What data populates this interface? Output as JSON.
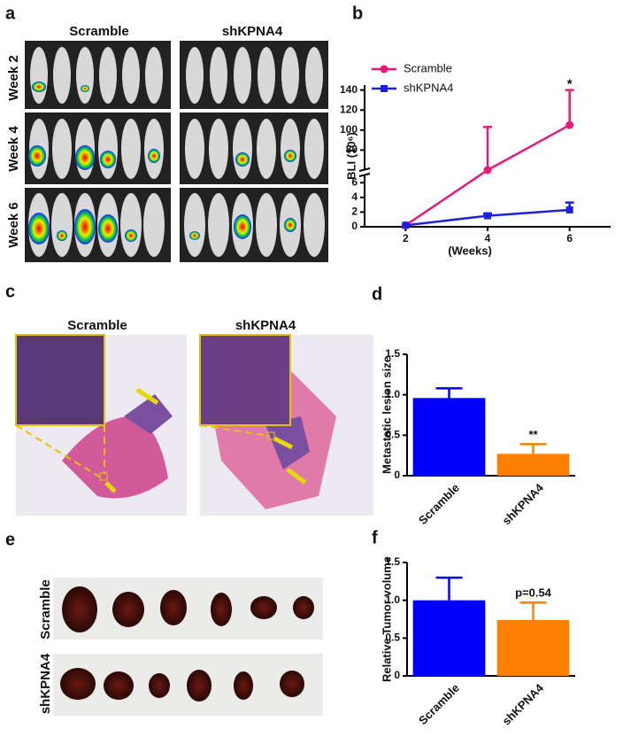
{
  "panels": {
    "labels": [
      "a",
      "b",
      "c",
      "d",
      "e",
      "f"
    ]
  },
  "panel_a": {
    "groups": [
      "Scramble",
      "shKPNA4"
    ],
    "rows": [
      "Week 2",
      "Week 4",
      "Week 6"
    ]
  },
  "panel_c": {
    "groups": [
      "Scramble",
      "shKPNA4"
    ]
  },
  "panel_e": {
    "rows": [
      "Scramble",
      "shKPNA4"
    ]
  },
  "chart_data": [
    {
      "type": "line",
      "ylabel": "BLI (10⁶)",
      "xlabel": "(Weeks)",
      "x": [
        2,
        4,
        6
      ],
      "xlim": [
        1,
        7
      ],
      "xticks": [
        2,
        4,
        6
      ],
      "y_segments": [
        {
          "ylim": [
            0,
            7
          ],
          "yticks": [
            0,
            2,
            4,
            6
          ]
        },
        {
          "ylim": [
            60,
            145
          ],
          "yticks": [
            80,
            100,
            120,
            140
          ]
        }
      ],
      "series": [
        {
          "name": "Scramble",
          "color": "#e8197a",
          "marker": "circle",
          "values": [
            0.2,
            60,
            105
          ],
          "errors": [
            null,
            43,
            35
          ]
        },
        {
          "name": "shKPNA4",
          "color": "#1f1fe0",
          "marker": "square",
          "values": [
            0.2,
            1.5,
            2.3
          ],
          "errors": [
            null,
            0.3,
            1
          ]
        }
      ],
      "annotation": "*",
      "legend": "upper left"
    },
    {
      "type": "bar",
      "ylabel": "Metastatic lesion size",
      "categories": [
        "Scramble",
        "shKPNA4"
      ],
      "values": [
        0.96,
        0.27
      ],
      "errors": [
        0.12,
        0.12
      ],
      "colors": [
        "#0000ff",
        "#ff8000"
      ],
      "ylim": [
        0,
        1.5
      ],
      "yticks": [
        0,
        0.5,
        {
          "value": 1,
          "label": "1.0"
        },
        1.5
      ],
      "annotation": "**"
    },
    {
      "type": "bar",
      "ylabel": "Relative Tumor volume",
      "categories": [
        "Scramble",
        "shKPNA4"
      ],
      "values": [
        1.0,
        0.74
      ],
      "errors": [
        0.3,
        0.23
      ],
      "colors": [
        "#0000ff",
        "#ff8000"
      ],
      "ylim": [
        0,
        1.5
      ],
      "yticks": [
        0,
        0.5,
        {
          "value": 1,
          "label": "1.0"
        },
        1.5
      ],
      "annotation": "p=0.54"
    }
  ]
}
